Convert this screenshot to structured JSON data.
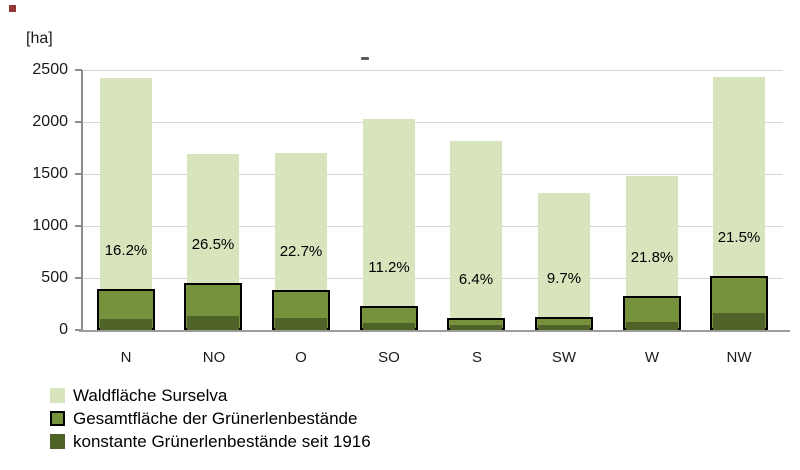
{
  "page": {
    "background_color": "#ffffff",
    "red_corner_mark_color": "#943634",
    "title_dash_color": "#595959"
  },
  "y_axis": {
    "unit_label": "[ha]",
    "tick_values": [
      "0",
      "500",
      "1000",
      "1500",
      "2000",
      "2500"
    ]
  },
  "chart_data": {
    "type": "bar",
    "title": "",
    "xlabel": "",
    "ylabel": "[ha]",
    "ylim": [
      0,
      2500
    ],
    "ytick_step": 500,
    "grid": "horizontal",
    "legend_position": "bottom-left",
    "categories": [
      "N",
      "NO",
      "O",
      "SO",
      "S",
      "SW",
      "W",
      "NW"
    ],
    "series": [
      {
        "name": "Waldfläche Surselva",
        "color": "#D8E4BC",
        "outlined": false,
        "values": [
          2420,
          1690,
          1700,
          2030,
          1820,
          1320,
          1480,
          2430
        ]
      },
      {
        "name": "Gesamtfläche der Grünerlenbestände",
        "color": "#76923C",
        "outlined": true,
        "outline_color": "#000000",
        "values": [
          392,
          448,
          386,
          227,
          116,
          128,
          323,
          522
        ]
      },
      {
        "name": "konstante Grünerlenbestände seit 1916",
        "color": "#4F6228",
        "outlined": false,
        "values": [
          105,
          130,
          115,
          65,
          45,
          50,
          75,
          165
        ]
      }
    ],
    "percent_labels": [
      "16.2%",
      "26.5%",
      "22.7%",
      "11.2%",
      "6.4%",
      "9.7%",
      "21.8%",
      "21.5%"
    ]
  },
  "legend": {
    "items": [
      {
        "label": "Waldfläche Surselva",
        "color": "#D8E4BC",
        "outlined": false
      },
      {
        "label": "Gesamtfläche der Grünerlenbestände",
        "color": "#76923C",
        "outlined": true
      },
      {
        "label": "konstante Grünerlenbestände seit 1916",
        "color": "#4F6228",
        "outlined": false
      }
    ]
  }
}
